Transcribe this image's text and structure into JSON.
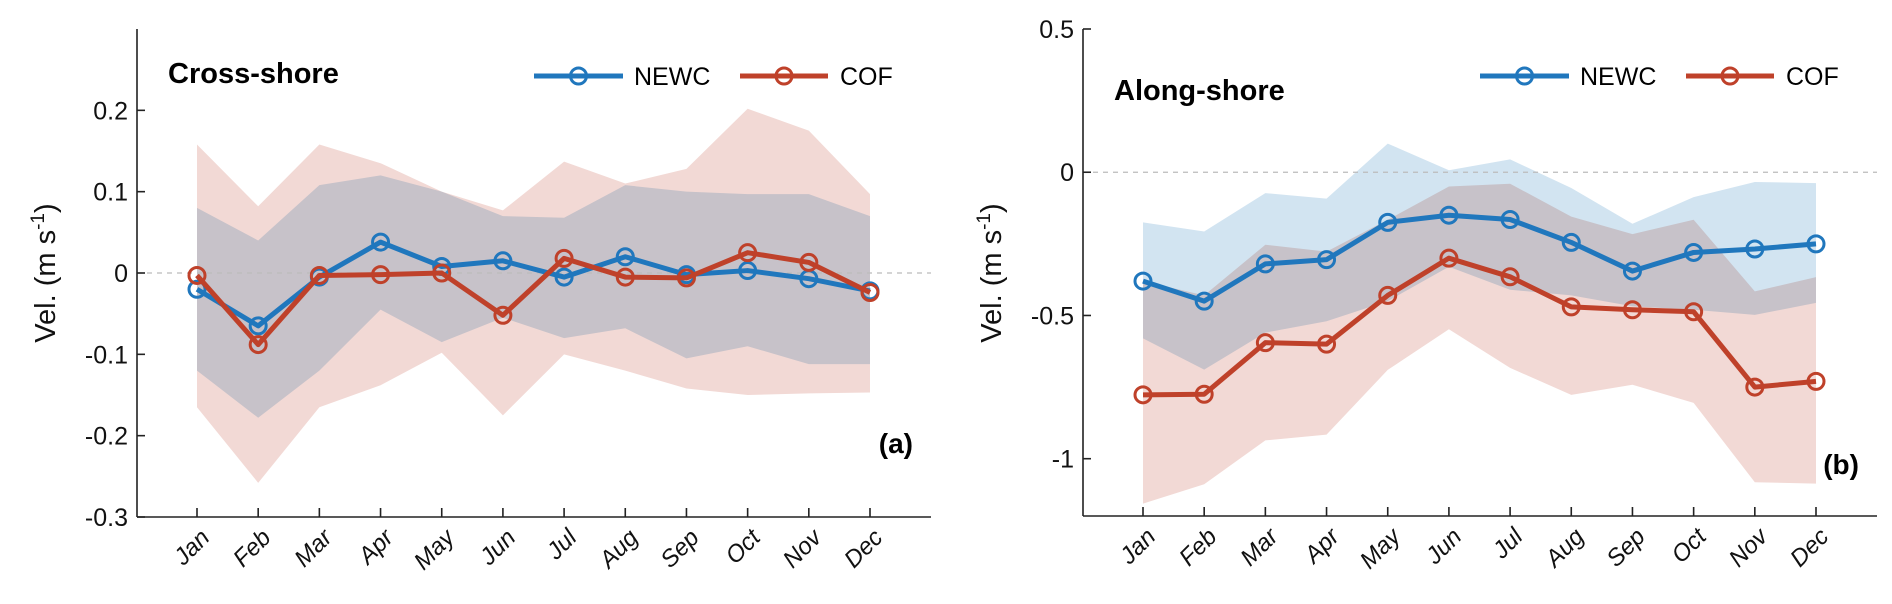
{
  "chart_data": [
    {
      "type": "line",
      "title": "Cross-shore",
      "panel_tag": "(a)",
      "ylabel_main": "Vel. (m s",
      "ylabel_sup": "-1",
      "ylabel_end": ")",
      "categories": [
        "Jan",
        "Feb",
        "Mar",
        "Apr",
        "May",
        "Jun",
        "Jul",
        "Aug",
        "Sep",
        "Oct",
        "Nov",
        "Dec"
      ],
      "ylim": [
        -0.3,
        0.3
      ],
      "yticks": [
        0.2,
        0.1,
        0,
        -0.1,
        -0.2,
        -0.3
      ],
      "ytick_labels": [
        "0.2",
        "0.1",
        "0",
        "-0.1",
        "-0.2",
        "-0.3"
      ],
      "zero_line": true,
      "grid": false,
      "legend_position": "top-right",
      "series": [
        {
          "name": "NEWC",
          "color": "#2077bd",
          "band_color": "#d2e4f1",
          "values": [
            -0.02,
            -0.065,
            -0.005,
            0.038,
            0.008,
            0.015,
            -0.005,
            0.02,
            -0.002,
            0.003,
            -0.007,
            -0.022
          ],
          "upper": [
            0.08,
            0.04,
            0.108,
            0.12,
            0.1,
            0.07,
            0.068,
            0.108,
            0.1,
            0.097,
            0.097,
            0.07
          ],
          "lower": [
            -0.12,
            -0.178,
            -0.12,
            -0.045,
            -0.085,
            -0.055,
            -0.08,
            -0.068,
            -0.105,
            -0.09,
            -0.112,
            -0.112
          ]
        },
        {
          "name": "COF",
          "color": "#bf412a",
          "band_color": "#f2d9d5",
          "values": [
            -0.003,
            -0.088,
            -0.003,
            -0.002,
            0.0,
            -0.052,
            0.018,
            -0.005,
            -0.006,
            0.025,
            0.013,
            -0.024
          ],
          "upper": [
            0.158,
            0.082,
            0.158,
            0.135,
            0.1,
            0.077,
            0.137,
            0.11,
            0.128,
            0.202,
            0.175,
            0.097
          ],
          "lower": [
            -0.165,
            -0.258,
            -0.165,
            -0.138,
            -0.098,
            -0.175,
            -0.1,
            -0.12,
            -0.142,
            -0.15,
            -0.148,
            -0.147
          ]
        }
      ]
    },
    {
      "type": "line",
      "title": "Along-shore",
      "panel_tag": "(b)",
      "ylabel_main": "Vel. (m s",
      "ylabel_sup": "-1",
      "ylabel_end": ")",
      "categories": [
        "Jan",
        "Feb",
        "Mar",
        "Apr",
        "May",
        "Jun",
        "Jul",
        "Aug",
        "Sep",
        "Oct",
        "Nov",
        "Dec"
      ],
      "ylim": [
        -1.2,
        0.5
      ],
      "yticks": [
        0.5,
        0,
        -0.5,
        -1
      ],
      "ytick_labels": [
        "0.5",
        "0",
        "-0.5",
        "-1"
      ],
      "zero_line": true,
      "grid": false,
      "legend_position": "top-right",
      "series": [
        {
          "name": "NEWC",
          "color": "#2077bd",
          "band_color": "#d2e4f1",
          "values": [
            -0.38,
            -0.45,
            -0.32,
            -0.305,
            -0.175,
            -0.15,
            -0.165,
            -0.245,
            -0.345,
            -0.28,
            -0.268,
            -0.25
          ],
          "upper": [
            -0.175,
            -0.207,
            -0.073,
            -0.092,
            0.1,
            0.007,
            0.045,
            -0.055,
            -0.18,
            -0.087,
            -0.034,
            -0.038
          ],
          "lower": [
            -0.58,
            -0.689,
            -0.56,
            -0.52,
            -0.45,
            -0.33,
            -0.41,
            -0.43,
            -0.468,
            -0.48,
            -0.498,
            -0.456
          ]
        },
        {
          "name": "COF",
          "color": "#bf412a",
          "band_color": "#f2d9d5",
          "values": [
            -0.777,
            -0.775,
            -0.595,
            -0.6,
            -0.43,
            -0.3,
            -0.365,
            -0.47,
            -0.48,
            -0.487,
            -0.75,
            -0.73
          ],
          "upper": [
            -0.38,
            -0.43,
            -0.253,
            -0.277,
            -0.166,
            -0.05,
            -0.04,
            -0.155,
            -0.216,
            -0.166,
            -0.416,
            -0.366
          ],
          "lower": [
            -1.157,
            -1.089,
            -0.936,
            -0.916,
            -0.69,
            -0.548,
            -0.683,
            -0.777,
            -0.742,
            -0.805,
            -1.082,
            -1.087
          ]
        }
      ]
    }
  ]
}
